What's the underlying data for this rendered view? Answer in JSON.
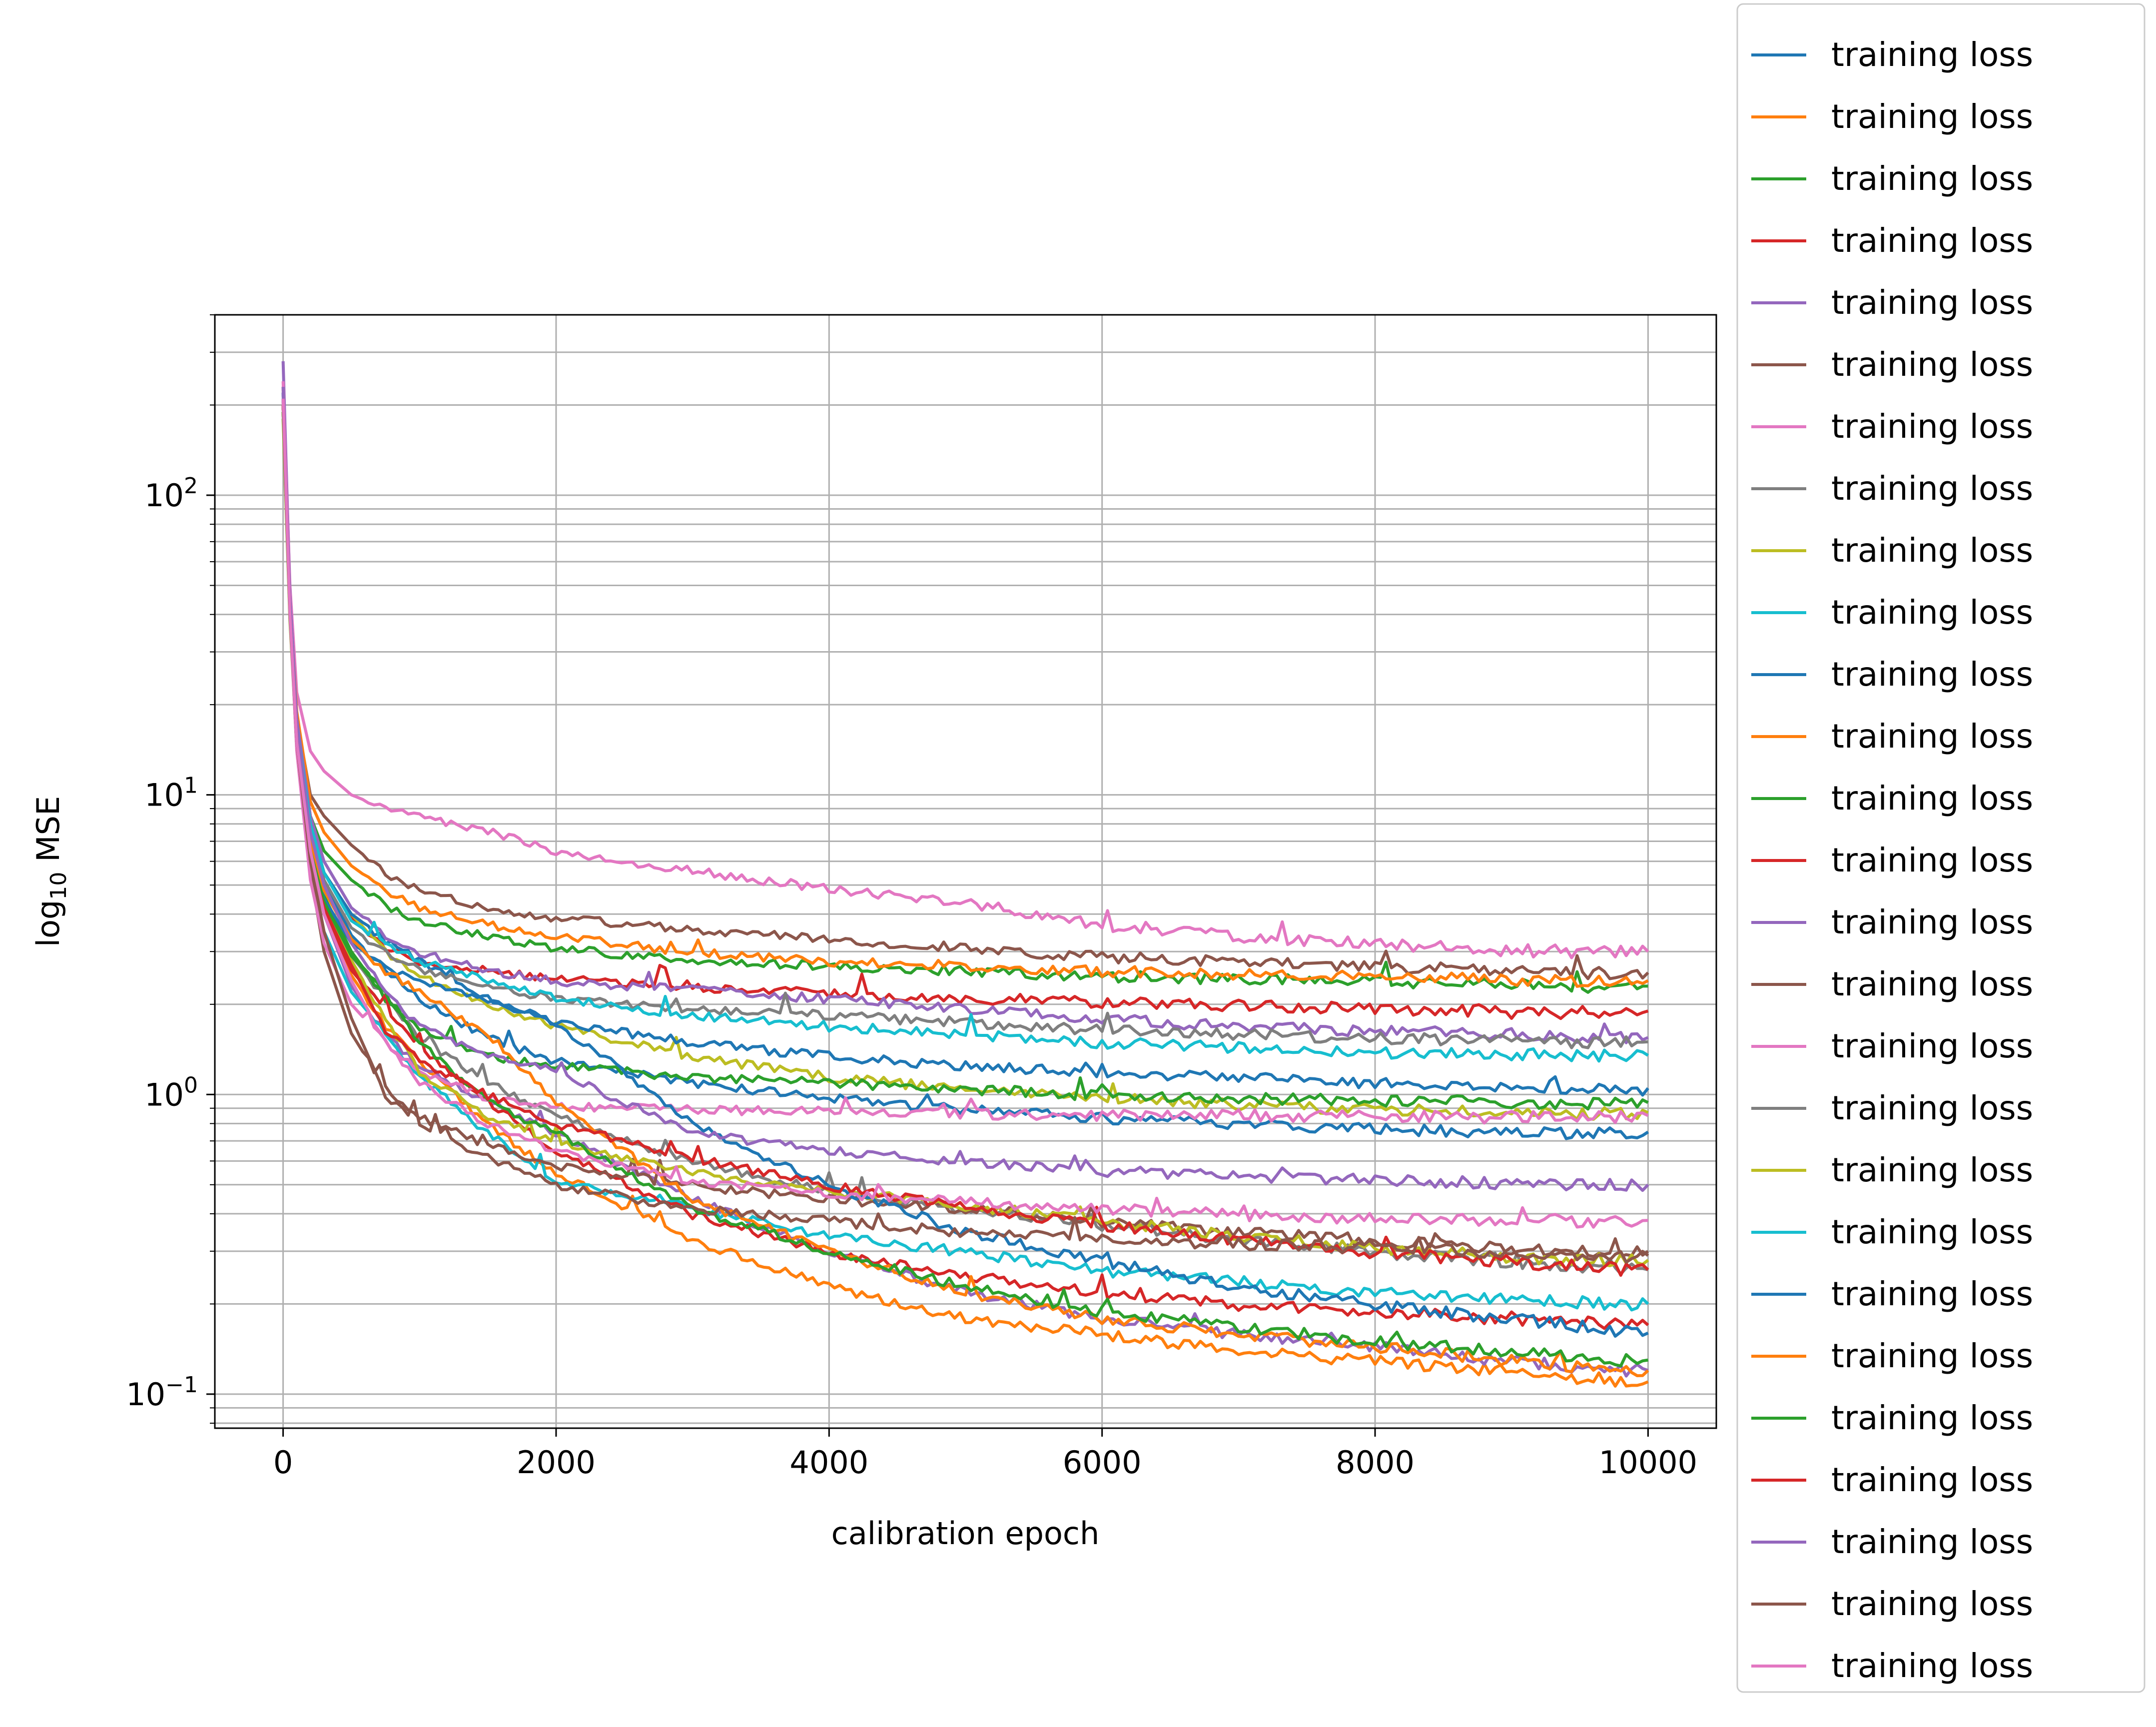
{
  "chart_data": {
    "type": "line",
    "title": "",
    "xlabel": "calibration epoch",
    "ylabel": "log",
    "ylabel_sub": "10",
    "ylabel_rest": " MSE",
    "xscale": "linear",
    "yscale": "log",
    "xlim": [
      -500,
      10500
    ],
    "ylim": [
      0.077,
      400
    ],
    "grid": "on (major and minor y)",
    "legend_placement": "right, outside plot",
    "x_ticks": [
      0,
      2000,
      4000,
      6000,
      8000,
      10000
    ],
    "x_tick_labels": [
      "0",
      "2000",
      "4000",
      "6000",
      "8000",
      "10000"
    ],
    "y_ticks": [
      0.1,
      1,
      10,
      100
    ],
    "y_tick_labels": [
      {
        "base": "10",
        "exp": "−1"
      },
      {
        "base": "10",
        "exp": "0"
      },
      {
        "base": "10",
        "exp": "1"
      },
      {
        "base": "10",
        "exp": "2"
      }
    ],
    "x": [
      0,
      50,
      100,
      200,
      300,
      500,
      750,
      1000,
      1500,
      2000,
      3000,
      4000,
      5000,
      6000,
      7000,
      8000,
      9000,
      10000
    ],
    "series": [
      {
        "name": "training loss",
        "color": "#1f77b4",
        "values": [
          220,
          45,
          18,
          8,
          5.2,
          3.4,
          2.6,
          2.1,
          1.55,
          1.3,
          1.1,
          0.98,
          0.9,
          0.84,
          0.8,
          0.77,
          0.76,
          0.75
        ]
      },
      {
        "name": "training loss",
        "color": "#ff7f0e",
        "values": [
          200,
          40,
          15,
          6.5,
          4.0,
          2.5,
          1.7,
          1.3,
          0.8,
          0.55,
          0.33,
          0.23,
          0.18,
          0.16,
          0.14,
          0.13,
          0.12,
          0.11
        ]
      },
      {
        "name": "training loss",
        "color": "#2ca02c",
        "values": [
          190,
          42,
          17,
          8.5,
          6.5,
          5.2,
          4.3,
          3.8,
          3.4,
          3.1,
          2.8,
          2.7,
          2.6,
          2.5,
          2.45,
          2.4,
          2.35,
          2.3
        ]
      },
      {
        "name": "training loss",
        "color": "#d62728",
        "values": [
          230,
          46,
          18,
          8,
          5.5,
          3.9,
          3.1,
          2.8,
          2.6,
          2.45,
          2.3,
          2.2,
          2.1,
          2.05,
          2.0,
          1.95,
          1.9,
          1.9
        ]
      },
      {
        "name": "training loss",
        "color": "#9467bd",
        "values": [
          280,
          48,
          17,
          7,
          4.0,
          2.3,
          1.6,
          1.25,
          0.95,
          0.75,
          0.45,
          0.3,
          0.22,
          0.18,
          0.16,
          0.145,
          0.13,
          0.12
        ]
      },
      {
        "name": "training loss",
        "color": "#8c564b",
        "values": [
          210,
          44,
          18,
          10,
          8.5,
          6.8,
          5.5,
          4.8,
          4.2,
          3.9,
          3.6,
          3.3,
          3.1,
          2.9,
          2.8,
          2.7,
          2.6,
          2.55
        ]
      },
      {
        "name": "training loss",
        "color": "#e377c2",
        "values": [
          240,
          50,
          22,
          14,
          12,
          10,
          9,
          8.5,
          7.6,
          6.5,
          5.6,
          4.9,
          4.4,
          3.7,
          3.4,
          3.2,
          3.05,
          3.0
        ]
      },
      {
        "name": "training loss",
        "color": "#7f7f7f",
        "values": [
          200,
          40,
          16,
          7,
          4.5,
          2.9,
          2.1,
          1.55,
          1.1,
          0.85,
          0.6,
          0.48,
          0.42,
          0.37,
          0.33,
          0.3,
          0.28,
          0.26
        ]
      },
      {
        "name": "training loss",
        "color": "#bcbd22",
        "values": [
          180,
          38,
          15,
          7,
          5.5,
          4.0,
          3.0,
          2.5,
          2.0,
          1.7,
          1.35,
          1.15,
          1.05,
          0.98,
          0.93,
          0.9,
          0.88,
          0.87
        ]
      },
      {
        "name": "training loss",
        "color": "#17becf",
        "values": [
          210,
          42,
          16,
          6,
          3.5,
          2.2,
          1.6,
          1.15,
          0.75,
          0.52,
          0.42,
          0.34,
          0.3,
          0.26,
          0.24,
          0.22,
          0.21,
          0.2
        ]
      },
      {
        "name": "training loss",
        "color": "#1f77b4",
        "values": [
          220,
          45,
          18,
          8,
          5.5,
          4.0,
          3.3,
          2.8,
          2.1,
          1.75,
          1.5,
          1.35,
          1.25,
          1.2,
          1.15,
          1.1,
          1.08,
          1.05
        ]
      },
      {
        "name": "training loss",
        "color": "#ff7f0e",
        "values": [
          200,
          43,
          19,
          9.5,
          7.5,
          5.8,
          4.8,
          4.2,
          3.7,
          3.4,
          3.0,
          2.8,
          2.7,
          2.6,
          2.55,
          2.5,
          2.45,
          2.4
        ]
      },
      {
        "name": "training loss",
        "color": "#2ca02c",
        "values": [
          190,
          40,
          16,
          7,
          4.6,
          3.0,
          2.1,
          1.65,
          1.35,
          1.25,
          1.15,
          1.1,
          1.05,
          1.0,
          0.98,
          0.96,
          0.95,
          0.94
        ]
      },
      {
        "name": "training loss",
        "color": "#d62728",
        "values": [
          210,
          42,
          16,
          6.5,
          4.0,
          2.6,
          1.9,
          1.45,
          0.95,
          0.65,
          0.4,
          0.3,
          0.25,
          0.22,
          0.2,
          0.19,
          0.18,
          0.17
        ]
      },
      {
        "name": "training loss",
        "color": "#9467bd",
        "values": [
          230,
          45,
          18,
          8.5,
          6.0,
          4.2,
          3.4,
          3.0,
          2.6,
          2.4,
          2.25,
          2.1,
          1.95,
          1.8,
          1.7,
          1.65,
          1.6,
          1.55
        ]
      },
      {
        "name": "training loss",
        "color": "#8c564b",
        "values": [
          200,
          40,
          15,
          5.5,
          3.0,
          1.6,
          1.05,
          0.85,
          0.68,
          0.58,
          0.5,
          0.45,
          0.42,
          0.38,
          0.35,
          0.33,
          0.31,
          0.3
        ]
      },
      {
        "name": "training loss",
        "color": "#e377c2",
        "values": [
          210,
          40,
          14,
          5.2,
          3.2,
          2.0,
          1.5,
          1.2,
          0.98,
          0.92,
          0.9,
          0.88,
          0.87,
          0.86,
          0.86,
          0.85,
          0.85,
          0.85
        ]
      },
      {
        "name": "training loss",
        "color": "#7f7f7f",
        "values": [
          200,
          41,
          16,
          7.5,
          5.2,
          3.6,
          3.0,
          2.6,
          2.3,
          2.1,
          1.95,
          1.85,
          1.75,
          1.65,
          1.6,
          1.55,
          1.52,
          1.5
        ]
      },
      {
        "name": "training loss",
        "color": "#bcbd22",
        "values": [
          190,
          39,
          15,
          6.2,
          4.3,
          2.8,
          1.8,
          1.2,
          0.85,
          0.7,
          0.55,
          0.48,
          0.43,
          0.38,
          0.34,
          0.31,
          0.29,
          0.28
        ]
      },
      {
        "name": "training loss",
        "color": "#17becf",
        "values": [
          200,
          42,
          17,
          8,
          5.5,
          3.8,
          3.2,
          2.8,
          2.4,
          2.1,
          1.85,
          1.7,
          1.6,
          1.5,
          1.45,
          1.4,
          1.38,
          1.35
        ]
      },
      {
        "name": "training loss",
        "color": "#1f77b4",
        "values": [
          210,
          40,
          15,
          6.5,
          4.5,
          3.2,
          2.7,
          2.4,
          2.1,
          1.75,
          0.8,
          0.5,
          0.35,
          0.28,
          0.23,
          0.2,
          0.18,
          0.16
        ]
      },
      {
        "name": "training loss",
        "color": "#ff7f0e",
        "values": [
          200,
          40,
          16,
          7,
          4.8,
          3.3,
          2.6,
          2.2,
          1.6,
          0.95,
          0.45,
          0.3,
          0.22,
          0.18,
          0.16,
          0.145,
          0.13,
          0.12
        ]
      },
      {
        "name": "training loss",
        "color": "#2ca02c",
        "values": [
          190,
          39,
          15,
          6.5,
          4.4,
          2.9,
          2.2,
          1.5,
          0.95,
          0.75,
          0.42,
          0.3,
          0.23,
          0.19,
          0.17,
          0.15,
          0.14,
          0.13
        ]
      },
      {
        "name": "training loss",
        "color": "#d62728",
        "values": [
          200,
          40,
          15,
          6.0,
          4.2,
          2.7,
          1.65,
          1.3,
          1.0,
          0.8,
          0.62,
          0.5,
          0.42,
          0.37,
          0.33,
          0.3,
          0.28,
          0.26
        ]
      },
      {
        "name": "training loss",
        "color": "#9467bd",
        "values": [
          220,
          42,
          17,
          7.5,
          5.0,
          3.2,
          2.2,
          1.7,
          1.35,
          1.2,
          0.75,
          0.65,
          0.6,
          0.56,
          0.54,
          0.52,
          0.51,
          0.5
        ]
      },
      {
        "name": "training loss",
        "color": "#8c564b",
        "values": [
          200,
          40,
          15,
          6.0,
          3.5,
          1.8,
          1.0,
          0.8,
          0.62,
          0.5,
          0.42,
          0.38,
          0.35,
          0.33,
          0.32,
          0.31,
          0.3,
          0.29
        ]
      },
      {
        "name": "training loss",
        "color": "#e377c2",
        "values": [
          210,
          40,
          15,
          6.5,
          4.0,
          2.4,
          1.5,
          1.1,
          0.8,
          0.65,
          0.52,
          0.47,
          0.44,
          0.42,
          0.4,
          0.39,
          0.385,
          0.38
        ]
      }
    ]
  }
}
